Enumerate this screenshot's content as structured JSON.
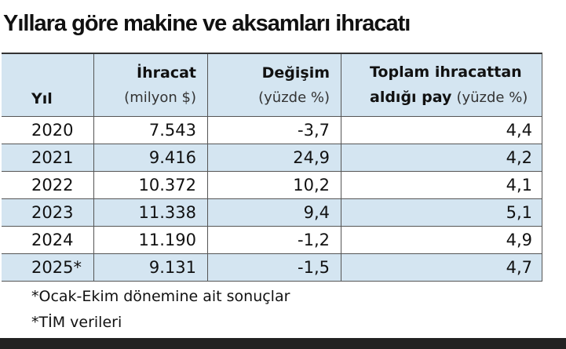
{
  "header": {
    "title": "Yıllara göre makine ve aksamları ihracatı"
  },
  "table": {
    "columns": [
      {
        "label": "Yıl"
      },
      {
        "label": "İhracat",
        "unit": "(milyon $)"
      },
      {
        "label": "Değişim",
        "unit": "(yüzde %)"
      },
      {
        "label": "Toplam ihracattan",
        "label2": "aldığı pay",
        "unit": "(yüzde %)"
      }
    ],
    "rows": [
      [
        "2020",
        "7.543",
        "-3,7",
        "4,4"
      ],
      [
        "2021",
        "9.416",
        "24,9",
        "4,2"
      ],
      [
        "2022",
        "10.372",
        "10,2",
        "4,1"
      ],
      [
        "2023",
        "11.338",
        "9,4",
        "5,1"
      ],
      [
        "2024",
        "11.190",
        "-1,2",
        "4,9"
      ],
      [
        "2025*",
        "9.131",
        "-1,5",
        "4,7"
      ]
    ]
  },
  "footnotes": [
    "*Ocak-Ekim dönemine ait sonuçlar",
    "*TİM verileri"
  ]
}
